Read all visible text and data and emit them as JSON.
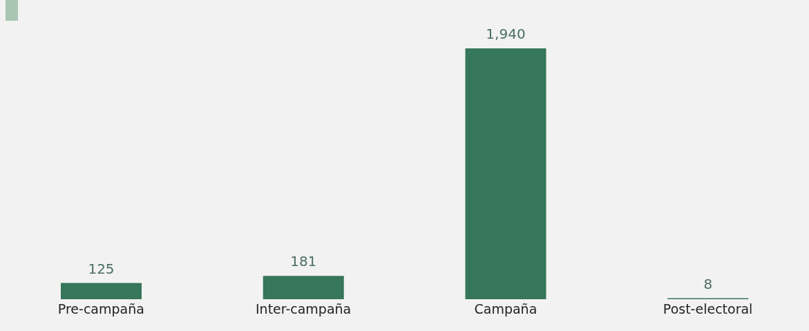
{
  "chart_data": {
    "type": "bar",
    "categories": [
      "Pre-campaña",
      "Inter-campaña",
      "Campaña",
      "Post-electoral"
    ],
    "values": [
      125,
      181,
      1940,
      8
    ],
    "color": "#36765a",
    "value_labels": [
      "125",
      "181",
      "1,940",
      "8"
    ]
  }
}
